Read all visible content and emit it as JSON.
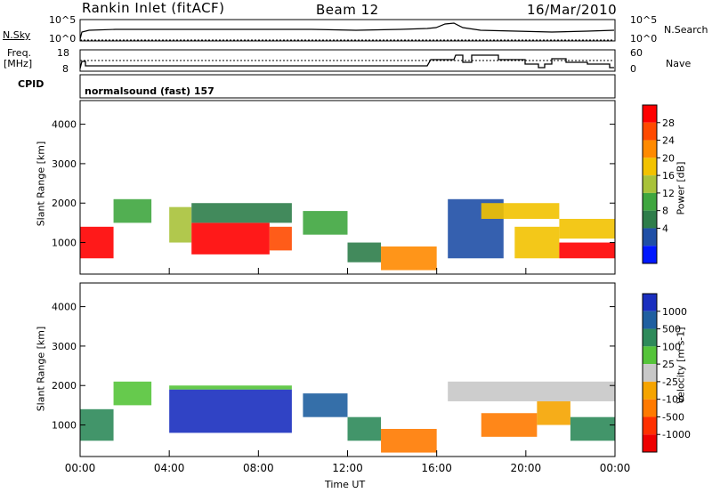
{
  "header": {
    "station": "Rankin Inlet (fitACF)",
    "beam": "Beam 12",
    "date": "16/Mar/2010"
  },
  "top_panel": {
    "left_label": "N.Sky",
    "right_label": "N.Search",
    "y_ticks": [
      "10^5",
      "10^0"
    ],
    "right_ticks": [
      "10^5",
      "10^0"
    ]
  },
  "freq_panel": {
    "left_label_1": "Freq.",
    "left_label_2": "[MHz]",
    "right_label": "Nave",
    "y_ticks": [
      "18",
      "8"
    ],
    "right_ticks": [
      "60",
      "0"
    ]
  },
  "cpid_panel": {
    "label": "CPID",
    "mode": "normalsound (fast) 157"
  },
  "power_panel": {
    "ylabel": "Slant Range [km]",
    "y_ticks": [
      "4000",
      "3000",
      "2000",
      "1000"
    ],
    "colorbar_label": "Power [dB]",
    "colorbar_ticks": [
      "28",
      "24",
      "20",
      "16",
      "12",
      "8",
      "4"
    ],
    "colors": [
      "#0018ff",
      "#1f4fa6",
      "#2e7d4a",
      "#3fa63f",
      "#a8c23a",
      "#f2c200",
      "#ff8a00",
      "#ff4a00",
      "#ff0000"
    ]
  },
  "velocity_panel": {
    "ylabel": "Slant Range [km]",
    "y_ticks": [
      "4000",
      "3000",
      "2000",
      "1000"
    ],
    "colorbar_label": "Velocity [m s-1]",
    "colorbar_ticks": [
      "1000",
      "500",
      "100",
      "25",
      "-25",
      "-100",
      "-500",
      "-1000"
    ],
    "colors": [
      "#1a2fbf",
      "#1f5fa0",
      "#2e8a5a",
      "#55c43a",
      "#c8c8c8",
      "#f5a400",
      "#ff7a00",
      "#ff3000",
      "#ee0000"
    ]
  },
  "x_axis": {
    "ticks": [
      "00:00",
      "04:00",
      "08:00",
      "12:00",
      "16:00",
      "20:00",
      "00:00"
    ],
    "label": "Time UT"
  },
  "chart_data": {
    "type": "heatmap",
    "x_range_hours": [
      0,
      24
    ],
    "y_range_km": [
      200,
      4600
    ],
    "power_bands": [
      {
        "t0": 0.0,
        "t1": 1.5,
        "r0": 600,
        "r1": 1400,
        "level": 8
      },
      {
        "t0": 1.5,
        "t1": 3.2,
        "r0": 1500,
        "r1": 2100,
        "level": 3
      },
      {
        "t0": 4.0,
        "t1": 5.0,
        "r0": 1000,
        "r1": 1900,
        "level": 4
      },
      {
        "t0": 5.0,
        "t1": 8.5,
        "r0": 700,
        "r1": 1500,
        "level": 8
      },
      {
        "t0": 5.0,
        "t1": 9.5,
        "r0": 1500,
        "r1": 2000,
        "level": 2
      },
      {
        "t0": 8.5,
        "t1": 9.5,
        "r0": 800,
        "r1": 1400,
        "level": 7
      },
      {
        "t0": 10.0,
        "t1": 12.0,
        "r0": 1200,
        "r1": 1800,
        "level": 3
      },
      {
        "t0": 12.0,
        "t1": 13.5,
        "r0": 500,
        "r1": 1000,
        "level": 2
      },
      {
        "t0": 13.5,
        "t1": 16.0,
        "r0": 300,
        "r1": 900,
        "level": 6
      },
      {
        "t0": 16.5,
        "t1": 19.0,
        "r0": 600,
        "r1": 2100,
        "level": 1
      },
      {
        "t0": 18.0,
        "t1": 21.5,
        "r0": 1600,
        "r1": 2000,
        "level": 5
      },
      {
        "t0": 19.5,
        "t1": 21.5,
        "r0": 600,
        "r1": 1400,
        "level": 5
      },
      {
        "t0": 21.5,
        "t1": 24.0,
        "r0": 600,
        "r1": 1000,
        "level": 8
      },
      {
        "t0": 21.5,
        "t1": 24.0,
        "r0": 1100,
        "r1": 1600,
        "level": 5
      }
    ],
    "velocity_bands": [
      {
        "t0": 0.0,
        "t1": 1.5,
        "r0": 600,
        "r1": 1400,
        "level": 2
      },
      {
        "t0": 1.5,
        "t1": 3.2,
        "r0": 1500,
        "r1": 2100,
        "level": 3
      },
      {
        "t0": 4.0,
        "t1": 9.5,
        "r0": 800,
        "r1": 1900,
        "level": 0
      },
      {
        "t0": 4.0,
        "t1": 9.5,
        "r0": 1900,
        "r1": 2000,
        "level": 3
      },
      {
        "t0": 10.0,
        "t1": 12.0,
        "r0": 1200,
        "r1": 1800,
        "level": 1
      },
      {
        "t0": 12.0,
        "t1": 13.5,
        "r0": 600,
        "r1": 1200,
        "level": 2
      },
      {
        "t0": 13.5,
        "t1": 16.0,
        "r0": 300,
        "r1": 900,
        "level": 6
      },
      {
        "t0": 16.5,
        "t1": 24.0,
        "r0": 1600,
        "r1": 2100,
        "level": 4
      },
      {
        "t0": 18.0,
        "t1": 20.5,
        "r0": 700,
        "r1": 1300,
        "level": 6
      },
      {
        "t0": 20.5,
        "t1": 22.0,
        "r0": 1000,
        "r1": 1600,
        "level": 5
      },
      {
        "t0": 22.0,
        "t1": 24.0,
        "r0": 600,
        "r1": 1200,
        "level": 2
      }
    ]
  }
}
